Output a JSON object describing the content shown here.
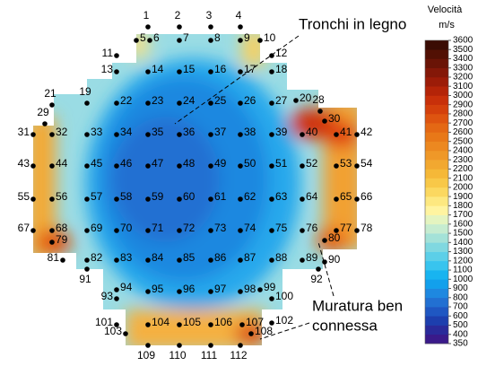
{
  "chart_data": {
    "type": "contour",
    "colorbar": {
      "title": "Velocità",
      "unit": "m/s",
      "ticks": [
        350,
        400,
        500,
        600,
        700,
        800,
        900,
        1000,
        1100,
        1200,
        1300,
        1400,
        1500,
        1600,
        1700,
        1800,
        1900,
        2000,
        2100,
        2200,
        2300,
        2400,
        2500,
        2600,
        2700,
        2800,
        2900,
        3000,
        3100,
        3200,
        3300,
        3400,
        3500,
        3600
      ],
      "colors": [
        "#3a1a8a",
        "#2a2a9a",
        "#1d3fae",
        "#1f57c2",
        "#2270d2",
        "#1e88e0",
        "#12a0ec",
        "#18b4f0",
        "#38c4ee",
        "#5ccfe8",
        "#80d8e0",
        "#a4e2d8",
        "#c6ecd0",
        "#e4f4c0",
        "#fff4a0",
        "#fde880",
        "#fbd860",
        "#f8c848",
        "#f5b838",
        "#f2a830",
        "#ef9828",
        "#ec8820",
        "#e87818",
        "#e46814",
        "#de5410",
        "#d4400c",
        "#c8300a",
        "#b42408",
        "#9c1c08",
        "#841808",
        "#6a1406",
        "#521004",
        "#3a0c04"
      ]
    },
    "points": [
      1,
      2,
      3,
      4,
      5,
      6,
      7,
      8,
      9,
      10,
      11,
      12,
      13,
      14,
      15,
      16,
      17,
      18,
      19,
      20,
      21,
      22,
      23,
      24,
      25,
      26,
      27,
      28,
      29,
      30,
      31,
      32,
      33,
      34,
      35,
      36,
      37,
      38,
      39,
      40,
      41,
      42,
      43,
      44,
      45,
      46,
      47,
      48,
      49,
      50,
      51,
      52,
      53,
      54,
      55,
      56,
      57,
      58,
      59,
      60,
      61,
      62,
      63,
      64,
      65,
      66,
      67,
      68,
      69,
      70,
      71,
      72,
      73,
      74,
      75,
      76,
      77,
      78,
      79,
      80,
      81,
      82,
      83,
      84,
      85,
      86,
      87,
      88,
      89,
      90,
      91,
      92,
      93,
      94,
      95,
      96,
      97,
      98,
      99,
      100,
      101,
      102,
      103,
      104,
      105,
      106,
      107,
      108,
      109,
      110,
      111,
      112
    ],
    "annotations": [
      "Tronchi in legno",
      "Muratura ben",
      "connessa"
    ]
  }
}
